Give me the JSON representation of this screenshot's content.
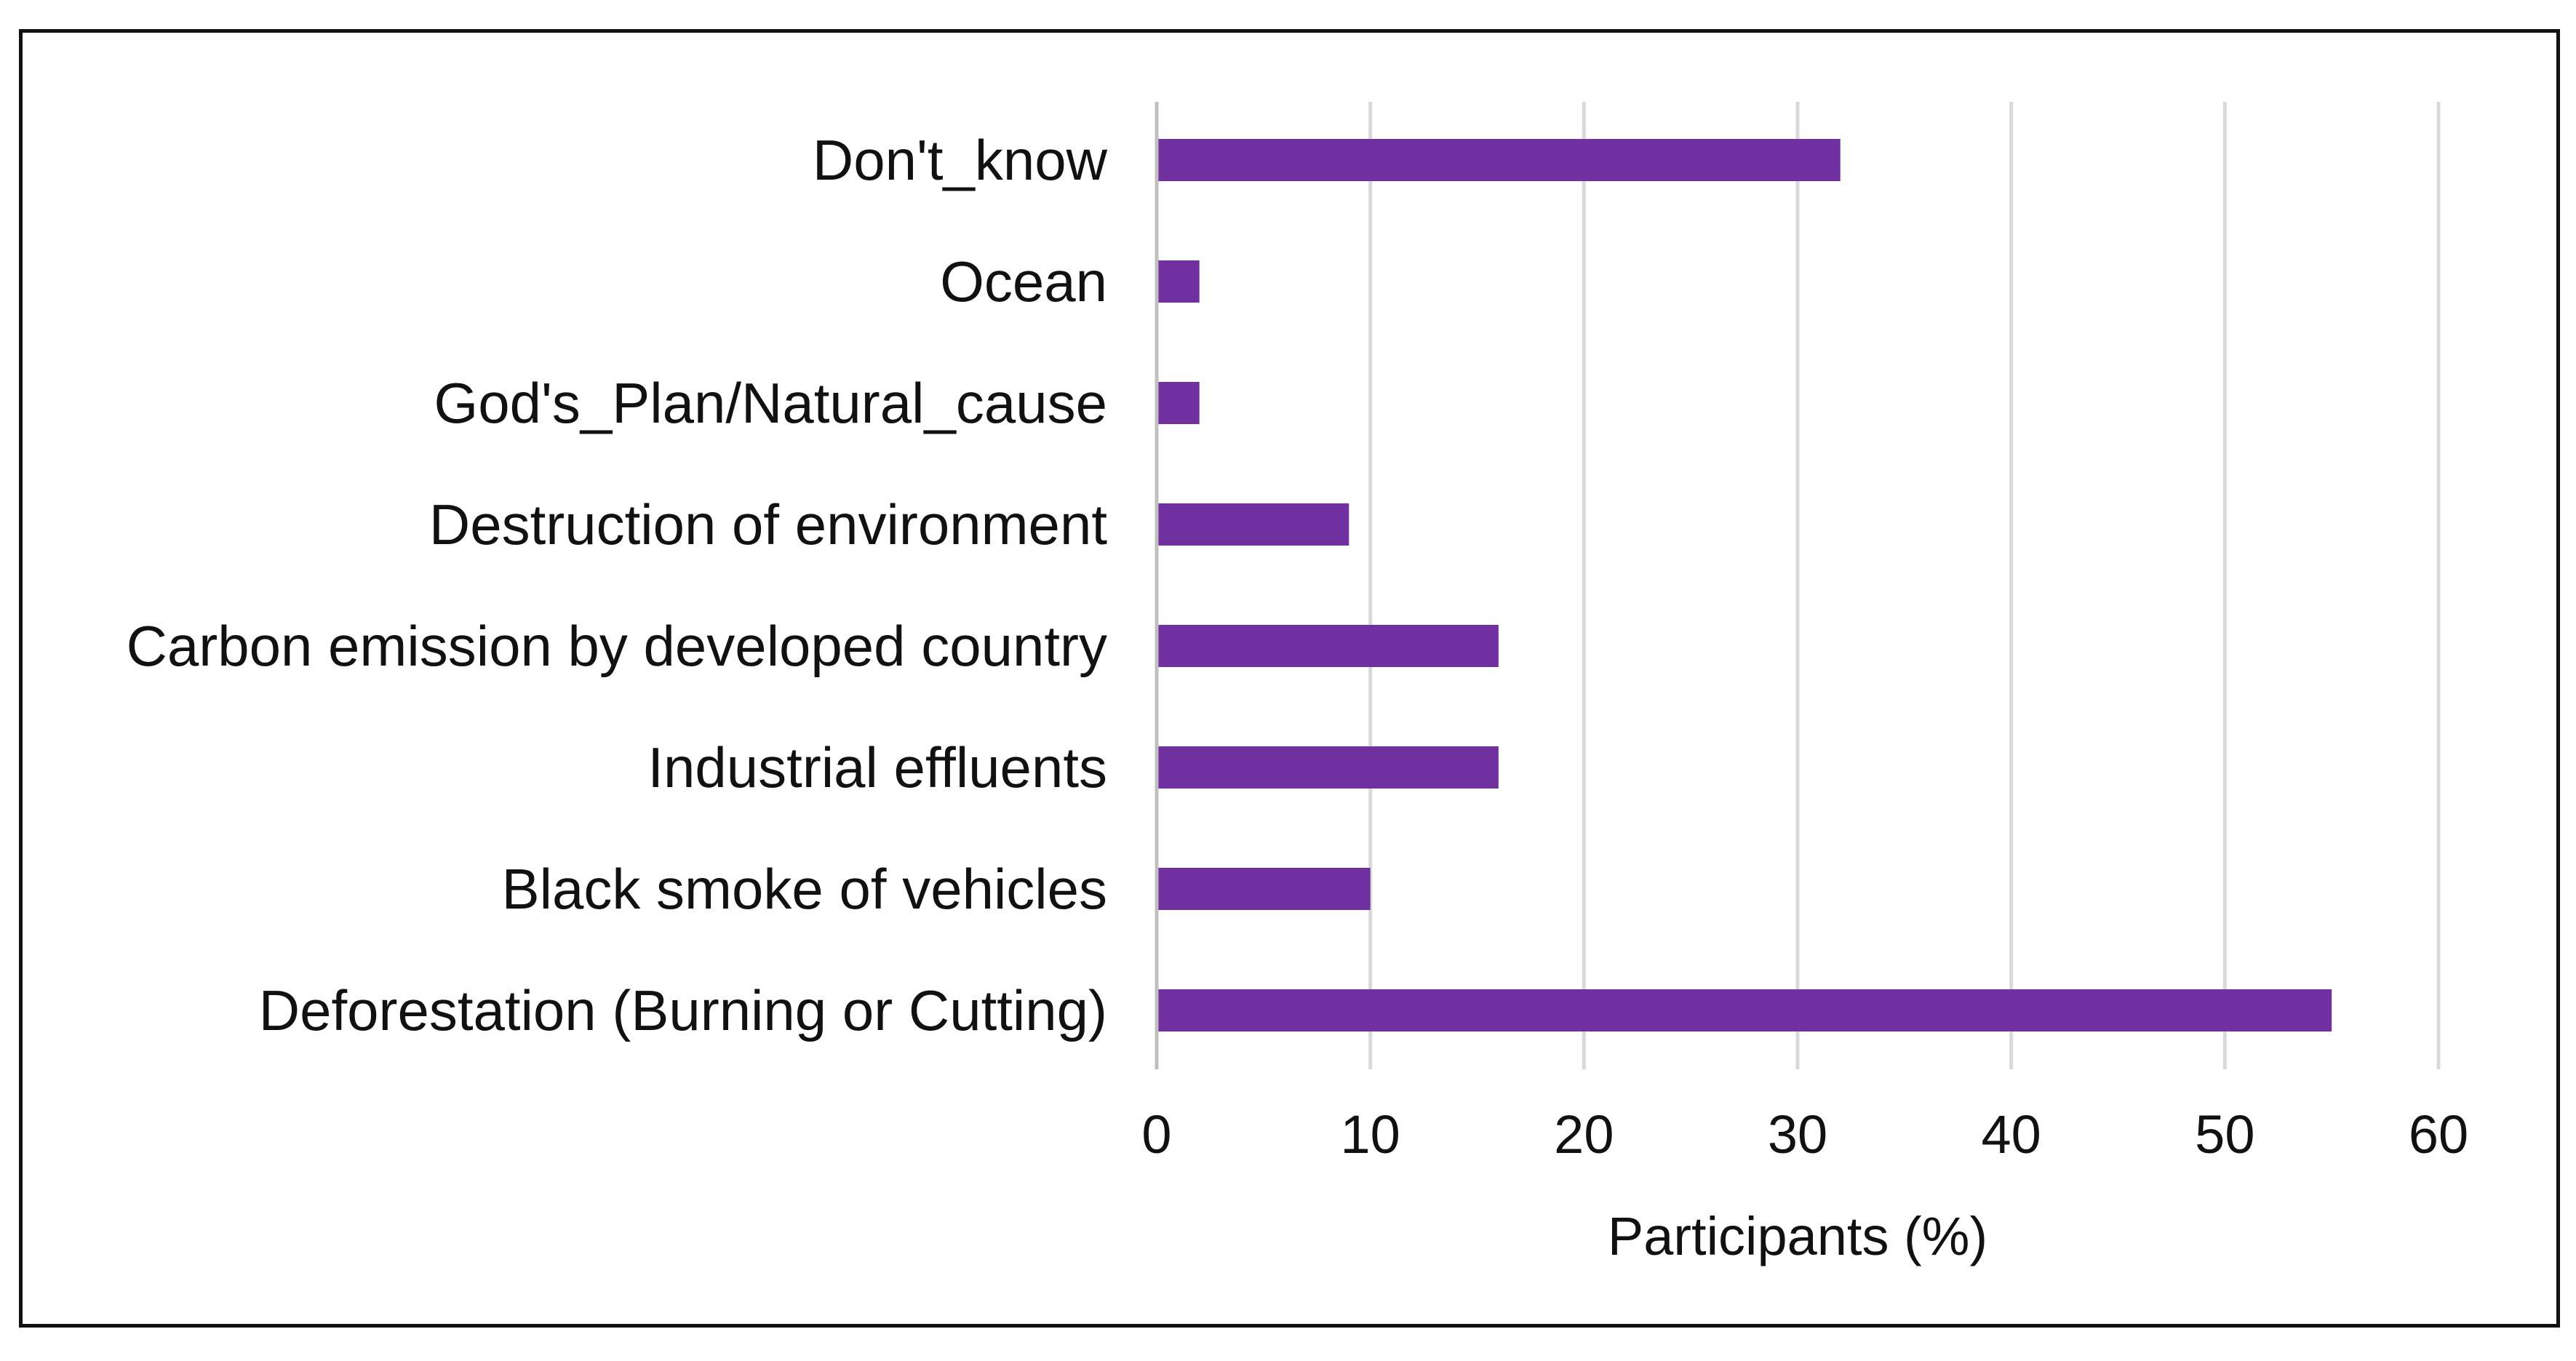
{
  "chart_data": {
    "type": "bar",
    "orientation": "horizontal",
    "categories": [
      "Don't_know",
      "Ocean",
      "God's_Plan/Natural_cause",
      "Destruction of environment",
      "Carbon emission by developed country",
      "Industrial effluents",
      "Black smoke of vehicles",
      "Deforestation (Burning or Cutting)"
    ],
    "values": [
      32,
      2,
      2,
      9,
      16,
      16,
      10,
      55
    ],
    "xlabel": "Participants (%)",
    "xlim": [
      0,
      60
    ],
    "xticks": [
      "0",
      "10",
      "20",
      "30",
      "40",
      "50",
      "60"
    ],
    "grid": true,
    "bar_color": "#7030A0",
    "grid_color": "#D9D9D9",
    "axis_color": "#BFBFBF"
  }
}
